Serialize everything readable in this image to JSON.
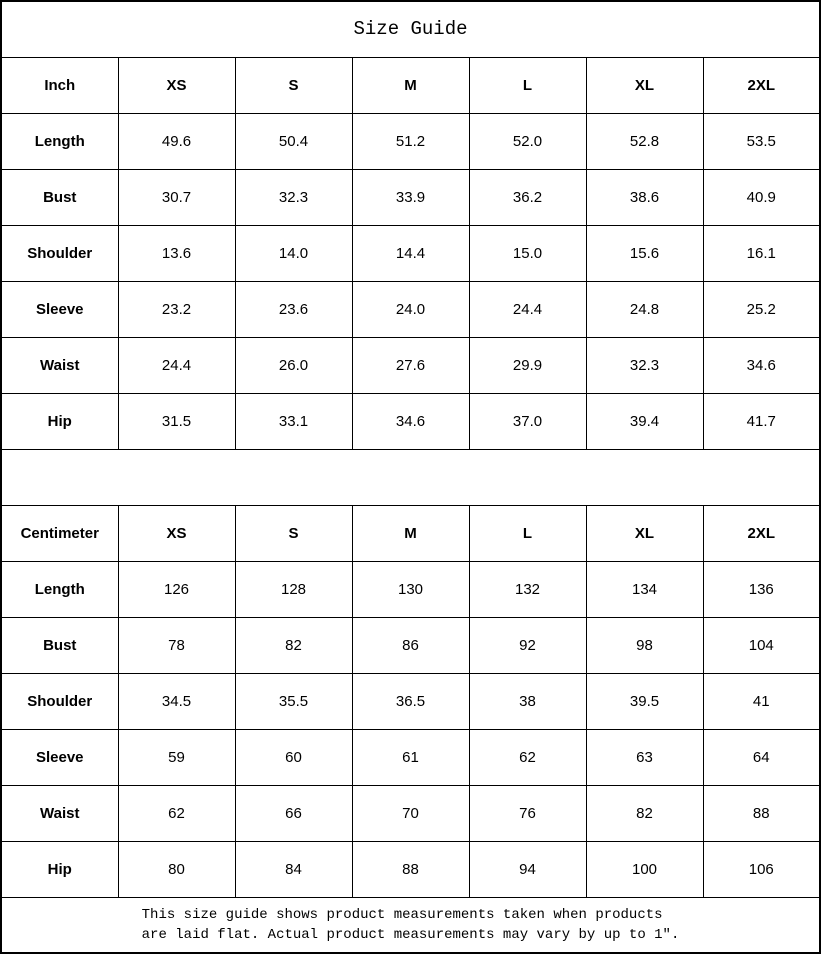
{
  "title": "Size Guide",
  "tables": [
    {
      "unit_label": "Inch",
      "sizes": [
        "XS",
        "S",
        "M",
        "L",
        "XL",
        "2XL"
      ],
      "rows": [
        {
          "label": "Length",
          "values": [
            "49.6",
            "50.4",
            "51.2",
            "52.0",
            "52.8",
            "53.5"
          ]
        },
        {
          "label": "Bust",
          "values": [
            "30.7",
            "32.3",
            "33.9",
            "36.2",
            "38.6",
            "40.9"
          ]
        },
        {
          "label": "Shoulder",
          "values": [
            "13.6",
            "14.0",
            "14.4",
            "15.0",
            "15.6",
            "16.1"
          ]
        },
        {
          "label": "Sleeve",
          "values": [
            "23.2",
            "23.6",
            "24.0",
            "24.4",
            "24.8",
            "25.2"
          ]
        },
        {
          "label": "Waist",
          "values": [
            "24.4",
            "26.0",
            "27.6",
            "29.9",
            "32.3",
            "34.6"
          ]
        },
        {
          "label": "Hip",
          "values": [
            "31.5",
            "33.1",
            "34.6",
            "37.0",
            "39.4",
            "41.7"
          ]
        }
      ]
    },
    {
      "unit_label": "Centimeter",
      "sizes": [
        "XS",
        "S",
        "M",
        "L",
        "XL",
        "2XL"
      ],
      "rows": [
        {
          "label": "Length",
          "values": [
            "126",
            "128",
            "130",
            "132",
            "134",
            "136"
          ]
        },
        {
          "label": "Bust",
          "values": [
            "78",
            "82",
            "86",
            "92",
            "98",
            "104"
          ]
        },
        {
          "label": "Shoulder",
          "values": [
            "34.5",
            "35.5",
            "36.5",
            "38",
            "39.5",
            "41"
          ]
        },
        {
          "label": "Sleeve",
          "values": [
            "59",
            "60",
            "61",
            "62",
            "63",
            "64"
          ]
        },
        {
          "label": "Waist",
          "values": [
            "62",
            "66",
            "70",
            "76",
            "82",
            "88"
          ]
        },
        {
          "label": "Hip",
          "values": [
            "80",
            "84",
            "88",
            "94",
            "100",
            "106"
          ]
        }
      ]
    }
  ],
  "footer": {
    "line1": "This size guide shows product measurements taken when products",
    "line2": "are laid flat. Actual product measurements may vary by up to 1″."
  },
  "colors": {
    "border": "#000000",
    "text": "#000000",
    "background": "#ffffff"
  }
}
